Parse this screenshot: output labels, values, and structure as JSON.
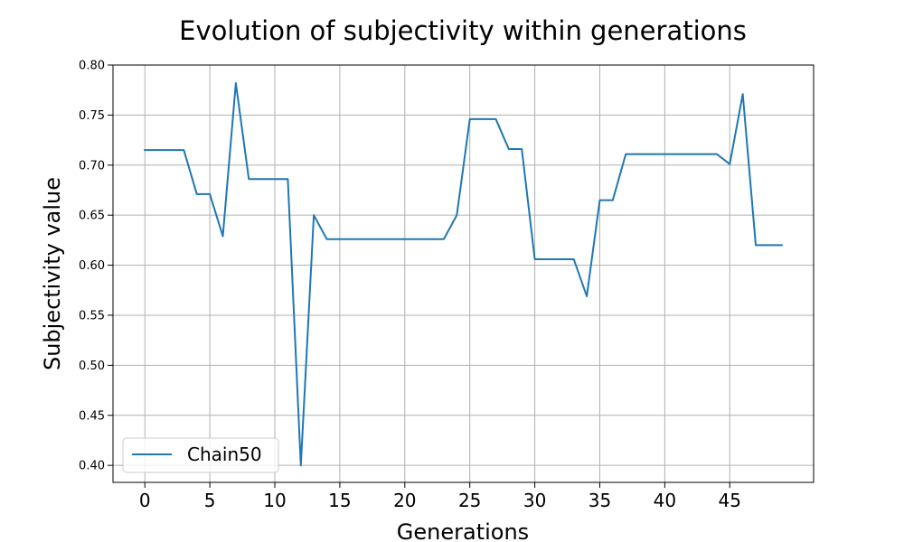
{
  "chart_data": {
    "type": "line",
    "title": "Evolution of subjectivity within generations",
    "xlabel": "Generations",
    "ylabel": "Subjectivity value",
    "xlim": [
      -2.45,
      51.45
    ],
    "ylim": [
      0.383,
      0.8
    ],
    "xticks": [
      0,
      5,
      10,
      15,
      20,
      25,
      30,
      35,
      40,
      45
    ],
    "xtick_labels": [
      "0",
      "5",
      "10",
      "15",
      "20",
      "25",
      "30",
      "35",
      "40",
      "45"
    ],
    "yticks": [
      0.4,
      0.45,
      0.5,
      0.55,
      0.6,
      0.65,
      0.7,
      0.75,
      0.8
    ],
    "ytick_labels": [
      "0.40",
      "0.45",
      "0.50",
      "0.55",
      "0.60",
      "0.65",
      "0.70",
      "0.75",
      "0.80"
    ],
    "grid": true,
    "legend_position": "lower-left",
    "series": [
      {
        "name": "Chain50",
        "color": "#1f77b4",
        "x": [
          0,
          1,
          2,
          3,
          4,
          5,
          6,
          7,
          8,
          9,
          10,
          11,
          12,
          13,
          14,
          15,
          16,
          17,
          18,
          19,
          20,
          21,
          22,
          23,
          24,
          25,
          26,
          27,
          28,
          29,
          30,
          31,
          32,
          33,
          34,
          35,
          36,
          37,
          38,
          39,
          40,
          41,
          42,
          43,
          44,
          45,
          46,
          47,
          48,
          49
        ],
        "values": [
          0.715,
          0.715,
          0.715,
          0.715,
          0.671,
          0.671,
          0.629,
          0.782,
          0.686,
          0.686,
          0.686,
          0.686,
          0.4,
          0.65,
          0.626,
          0.626,
          0.626,
          0.626,
          0.626,
          0.626,
          0.626,
          0.626,
          0.626,
          0.626,
          0.65,
          0.746,
          0.746,
          0.746,
          0.716,
          0.716,
          0.606,
          0.606,
          0.606,
          0.606,
          0.569,
          0.665,
          0.665,
          0.711,
          0.711,
          0.711,
          0.711,
          0.711,
          0.711,
          0.711,
          0.711,
          0.701,
          0.771,
          0.62,
          0.62,
          0.62
        ]
      }
    ]
  }
}
